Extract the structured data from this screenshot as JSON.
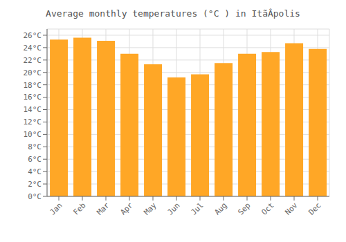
{
  "chart_data": {
    "type": "bar",
    "title": "Average monthly temperatures (°C ) in ItãÂpolis",
    "categories": [
      "Jan",
      "Feb",
      "Mar",
      "Apr",
      "May",
      "Jun",
      "Jul",
      "Aug",
      "Sep",
      "Oct",
      "Nov",
      "Dec"
    ],
    "values": [
      25.3,
      25.6,
      25.1,
      23.0,
      21.3,
      19.2,
      19.7,
      21.5,
      23.0,
      23.3,
      24.7,
      23.8
    ],
    "color": "#FFA726",
    "ylim": [
      0,
      27
    ],
    "yticks": [
      {
        "value": 0,
        "label": "0°C"
      },
      {
        "value": 2,
        "label": "2°C"
      },
      {
        "value": 4,
        "label": "4°C"
      },
      {
        "value": 6,
        "label": "6°C"
      },
      {
        "value": 8,
        "label": "8°C"
      },
      {
        "value": 10,
        "label": "10°C"
      },
      {
        "value": 12,
        "label": "12°C"
      },
      {
        "value": 14,
        "label": "14°C"
      },
      {
        "value": 16,
        "label": "16°C"
      },
      {
        "value": 18,
        "label": "18°C"
      },
      {
        "value": 20,
        "label": "20°C"
      },
      {
        "value": 22,
        "label": "22°C"
      },
      {
        "value": 24,
        "label": "24°C"
      },
      {
        "value": 26,
        "label": "26°C"
      }
    ],
    "grid": true
  }
}
